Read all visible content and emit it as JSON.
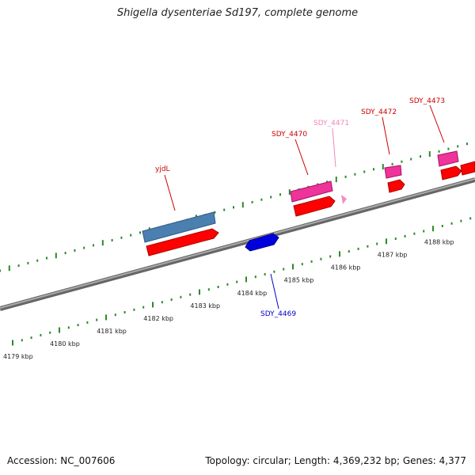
{
  "title": "Shigella dysenteriae Sd197, complete genome",
  "footer": {
    "accession": "Accession: NC_007606",
    "summary": "Topology: circular; Length: 4,369,232 bp; Genes: 4,377"
  },
  "colors": {
    "backbone": "#888888",
    "tick": "#2a8a2a",
    "cds": "#ff0000",
    "gene_blue": "#4a7fb0",
    "gene_pink": "#ee3399",
    "gene_pale": "#f090c0",
    "gene_navy": "#0000dd",
    "label_red": "#cc0000",
    "label_blue": "#0000cc",
    "label_pale": "#ee88bb"
  },
  "scale": {
    "unit": "kbp",
    "ticks": [
      {
        "label": "4179 kbp"
      },
      {
        "label": "4180 kbp"
      },
      {
        "label": "4181 kbp"
      },
      {
        "label": "4182 kbp"
      },
      {
        "label": "4183 kbp"
      },
      {
        "label": "4184 kbp"
      },
      {
        "label": "4185 kbp"
      },
      {
        "label": "4186 kbp"
      },
      {
        "label": "4187 kbp"
      },
      {
        "label": "4188 kbp"
      }
    ]
  },
  "genes": [
    {
      "name": "yjdL"
    },
    {
      "name": "SDY_4469"
    },
    {
      "name": "SDY_4470"
    },
    {
      "name": "SDY_4471"
    },
    {
      "name": "SDY_4472"
    },
    {
      "name": "SDY_4473"
    }
  ]
}
